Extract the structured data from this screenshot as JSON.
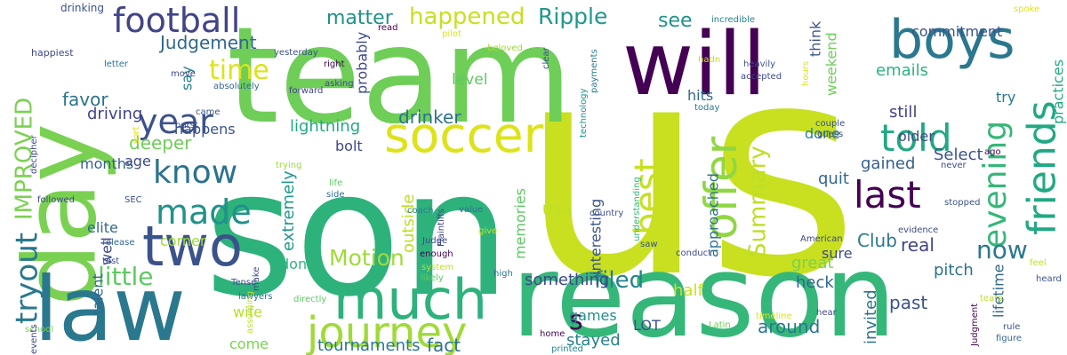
{
  "words": [
    {
      "text": "us",
      "color": "#c8e020"
    },
    {
      "text": "son",
      "color": "#2eb27c"
    },
    {
      "text": "team",
      "color": "#6ece58"
    },
    {
      "text": "reason",
      "color": "#35b779"
    },
    {
      "text": "day",
      "color": "#7ad151"
    },
    {
      "text": "law",
      "color": "#2a788e"
    },
    {
      "text": "will",
      "color": "#440154"
    },
    {
      "text": "boys",
      "color": "#2a788e"
    },
    {
      "text": "two",
      "color": "#3b528b"
    },
    {
      "text": "much",
      "color": "#2eb27c"
    },
    {
      "text": "journey",
      "color": "#a0da39"
    },
    {
      "text": "soccer",
      "color": "#dde318"
    },
    {
      "text": "football",
      "color": "#414487"
    },
    {
      "text": "friends",
      "color": "#22a884"
    },
    {
      "text": "offer",
      "color": "#90d743"
    },
    {
      "text": "evening",
      "color": "#35b779"
    },
    {
      "text": "told",
      "color": "#22a884"
    },
    {
      "text": "last",
      "color": "#440154"
    },
    {
      "text": "best",
      "color": "#c8e020"
    },
    {
      "text": "know",
      "color": "#2c728e"
    },
    {
      "text": "made",
      "color": "#21918c"
    },
    {
      "text": "year",
      "color": "#3b528b"
    },
    {
      "text": "time",
      "color": "#dde318"
    },
    {
      "text": "tryout",
      "color": "#2a788e"
    },
    {
      "text": "IMPROVED",
      "color": "#7ad151"
    },
    {
      "text": "happened",
      "color": "#c8e020"
    },
    {
      "text": "matter",
      "color": "#21918c"
    },
    {
      "text": "Ripple",
      "color": "#1f988b"
    },
    {
      "text": "Judgement",
      "color": "#31688e"
    },
    {
      "text": "Summary",
      "color": "#bddf26"
    },
    {
      "text": "Motion",
      "color": "#a0da39"
    },
    {
      "text": "little",
      "color": "#5ec962"
    },
    {
      "text": "filed",
      "color": "#26828e"
    },
    {
      "text": "now",
      "color": "#2a788e"
    },
    {
      "text": "s",
      "color": "#440154"
    },
    {
      "text": "see",
      "color": "#21918c"
    },
    {
      "text": "level",
      "color": "#5ec962"
    },
    {
      "text": "drinker",
      "color": "#2c728e"
    },
    {
      "text": "emails",
      "color": "#2eb27c"
    },
    {
      "text": "hits",
      "color": "#31688e"
    },
    {
      "text": "still",
      "color": "#414487"
    },
    {
      "text": "older",
      "color": "#3e4989"
    },
    {
      "text": "gained",
      "color": "#355f8d"
    },
    {
      "text": "Select",
      "color": "#3b528b"
    },
    {
      "text": "quit",
      "color": "#31688e"
    },
    {
      "text": "sure",
      "color": "#3e4989"
    },
    {
      "text": "Club",
      "color": "#2a788e"
    },
    {
      "text": "real",
      "color": "#414487"
    },
    {
      "text": "pitch",
      "color": "#2c728e"
    },
    {
      "text": "great",
      "color": "#7ad151"
    },
    {
      "text": "heck",
      "color": "#31688e"
    },
    {
      "text": "past",
      "color": "#3b528b"
    },
    {
      "text": "invited",
      "color": "#2c728e"
    },
    {
      "text": "around",
      "color": "#2a788e"
    },
    {
      "text": "half",
      "color": "#c8e020"
    },
    {
      "text": "games",
      "color": "#21918c"
    },
    {
      "text": "LOT",
      "color": "#3b528b"
    },
    {
      "text": "stayed",
      "color": "#26828e"
    },
    {
      "text": "fact",
      "color": "#2c728e"
    },
    {
      "text": "tournaments",
      "color": "#2a788e"
    },
    {
      "text": "interesting",
      "color": "#3b528b"
    },
    {
      "text": "something",
      "color": "#3e4989"
    },
    {
      "text": "memories",
      "color": "#5ec962"
    },
    {
      "text": "outside",
      "color": "#bddf26"
    },
    {
      "text": "USA",
      "color": "#bddf26"
    },
    {
      "text": "don",
      "color": "#2eb27c"
    },
    {
      "text": "extremely",
      "color": "#1f988b"
    },
    {
      "text": "bolt",
      "color": "#3e4989"
    },
    {
      "text": "lightning",
      "color": "#22a884"
    },
    {
      "text": "deeper",
      "color": "#6ece58"
    },
    {
      "text": "happens",
      "color": "#3b528b"
    },
    {
      "text": "driving",
      "color": "#414487"
    },
    {
      "text": "favor",
      "color": "#2c728e"
    },
    {
      "text": "say",
      "color": "#26828e"
    },
    {
      "text": "probably",
      "color": "#3e4989"
    },
    {
      "text": "approached",
      "color": "#2c728e"
    },
    {
      "text": "done",
      "color": "#26828e"
    },
    {
      "text": "think",
      "color": "#3b528b"
    },
    {
      "text": "weekend",
      "color": "#6ece58"
    },
    {
      "text": "practices",
      "color": "#22a884"
    },
    {
      "text": "commitment",
      "color": "#3b528b"
    },
    {
      "text": "try",
      "color": "#2a788e"
    },
    {
      "text": "lifetime",
      "color": "#31688e"
    },
    {
      "text": "age",
      "color": "#3e4989"
    },
    {
      "text": "months",
      "color": "#355f8d"
    },
    {
      "text": "elite",
      "color": "#31688e"
    },
    {
      "text": "corner",
      "color": "#a0da39"
    },
    {
      "text": "well",
      "color": "#3e4989"
    },
    {
      "text": "talent",
      "color": "#31688e"
    },
    {
      "text": "wife",
      "color": "#b5de2b"
    },
    {
      "text": "come",
      "color": "#7ad151"
    },
    {
      "text": "drinking",
      "color": "#3b528b"
    },
    {
      "text": "happiest",
      "color": "#3e4989"
    },
    {
      "text": "pilot",
      "color": "#dde318"
    },
    {
      "text": "read",
      "color": "#440154"
    },
    {
      "text": "beloved",
      "color": "#a0da39"
    },
    {
      "text": "clear",
      "color": "#3b528b"
    },
    {
      "text": "payments",
      "color": "#2a788e"
    },
    {
      "text": "technology",
      "color": "#21918c"
    },
    {
      "text": "country",
      "color": "#3b528b"
    },
    {
      "text": "coach",
      "color": "#26828e"
    },
    {
      "text": "value",
      "color": "#2c728e"
    },
    {
      "text": "Judge",
      "color": "#3e4989"
    },
    {
      "text": "enough",
      "color": "#440154"
    },
    {
      "text": "system",
      "color": "#bddf26"
    },
    {
      "text": "Plaintiffs",
      "color": "#414487"
    },
    {
      "text": "give",
      "color": "#bddf26"
    },
    {
      "text": "understanding",
      "color": "#35b779"
    },
    {
      "text": "home",
      "color": "#440154"
    },
    {
      "text": "saw",
      "color": "#3b528b"
    },
    {
      "text": "conduct",
      "color": "#3e4989"
    },
    {
      "text": "American",
      "color": "#414487"
    },
    {
      "text": "evidence",
      "color": "#3e4989"
    },
    {
      "text": "feel",
      "color": "#bddf26"
    },
    {
      "text": "heard",
      "color": "#3b528b"
    },
    {
      "text": "rule",
      "color": "#3b528b"
    },
    {
      "text": "figure",
      "color": "#31688e"
    },
    {
      "text": "tears",
      "color": "#bddf26"
    },
    {
      "text": "Judgment",
      "color": "#440154"
    },
    {
      "text": "hear",
      "color": "#3e4989"
    },
    {
      "text": "timeline",
      "color": "#dde318"
    },
    {
      "text": "Latin",
      "color": "#6ece58"
    },
    {
      "text": "printed",
      "color": "#26828e"
    },
    {
      "text": "high",
      "color": "#2c728e"
    },
    {
      "text": "likely",
      "color": "#5ec962"
    },
    {
      "text": "directly",
      "color": "#5ec962"
    },
    {
      "text": "lawyers",
      "color": "#2c728e"
    },
    {
      "text": "Tense",
      "color": "#3b528b"
    },
    {
      "text": "assuming",
      "color": "#b5de2b"
    },
    {
      "text": "make",
      "color": "#3e4989"
    },
    {
      "text": "test",
      "color": "#3b528b"
    },
    {
      "text": "release",
      "color": "#31688e"
    },
    {
      "text": "SEC",
      "color": "#3b528b"
    },
    {
      "text": "followed",
      "color": "#3e4989"
    },
    {
      "text": "decipher",
      "color": "#3e4989"
    },
    {
      "text": "sort",
      "color": "#dde318"
    },
    {
      "text": "school",
      "color": "#7ad151"
    },
    {
      "text": "events",
      "color": "#414487"
    },
    {
      "text": "letter",
      "color": "#2c728e"
    },
    {
      "text": "move",
      "color": "#3e4989"
    },
    {
      "text": "yesterday",
      "color": "#3b528b"
    },
    {
      "text": "right",
      "color": "#440154"
    },
    {
      "text": "asking",
      "color": "#3e4989"
    },
    {
      "text": "absolutely",
      "color": "#31688e"
    },
    {
      "text": "forward",
      "color": "#414487"
    },
    {
      "text": "came",
      "color": "#3b528b"
    },
    {
      "text": "burst",
      "color": "#3e4989"
    },
    {
      "text": "side",
      "color": "#2c728e"
    },
    {
      "text": "trying",
      "color": "#a0da39"
    },
    {
      "text": "life",
      "color": "#5ec962"
    },
    {
      "text": "incredible",
      "color": "#26828e"
    },
    {
      "text": "spoke",
      "color": "#dde318"
    },
    {
      "text": "hadn",
      "color": "#c8e020"
    },
    {
      "text": "hours",
      "color": "#dde318"
    },
    {
      "text": "heavily",
      "color": "#3b528b"
    },
    {
      "text": "accepted",
      "color": "#3e4989"
    },
    {
      "text": "today",
      "color": "#2a788e"
    },
    {
      "text": "couple",
      "color": "#3b528b"
    },
    {
      "text": "guess",
      "color": "#3e4989"
    },
    {
      "text": "ago",
      "color": "#440154"
    },
    {
      "text": "never",
      "color": "#3e4989"
    },
    {
      "text": "stopped",
      "color": "#3b528b"
    }
  ]
}
